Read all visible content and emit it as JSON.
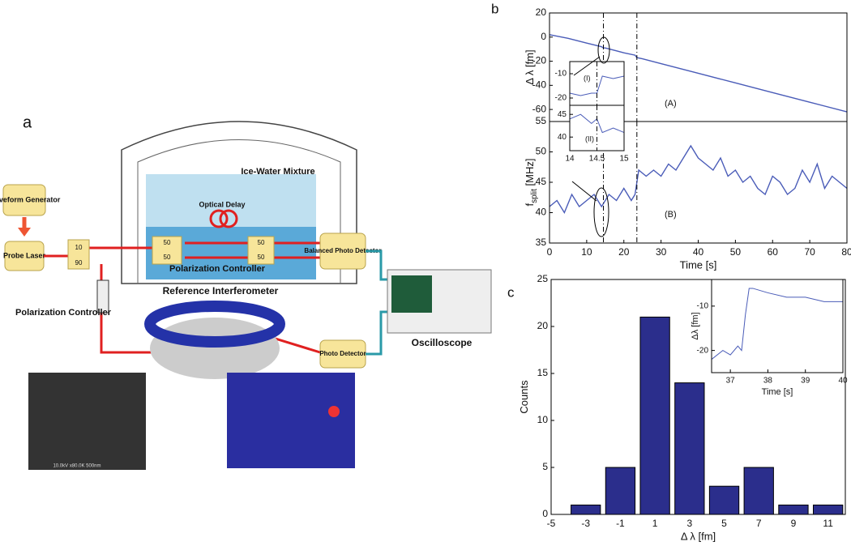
{
  "diagram": {
    "panel_label": "a",
    "waveform_generator": "Waveform Generator",
    "probe_laser": "Probe Laser",
    "coupler_top": "10",
    "coupler_bottom": "90",
    "polarization_controller": "Polarization Controller",
    "ice_water": "Ice-Water Mixture",
    "optical_delay": "Optical Delay",
    "splitter_labels": [
      "50",
      "50",
      "50",
      "50"
    ],
    "inner_polarization_controller": "Polarization Controller",
    "reference_interferometer": "Reference Interferometer",
    "balanced_detector": "Balanced Photo Detector",
    "photo_detector": "Photo Detector",
    "oscilloscope": "Oscilloscope",
    "sem_caption": "10.0kV x80.0K 500nm"
  },
  "panel_labels": {
    "b": "b",
    "c": "c"
  },
  "chart_data": [
    {
      "type": "line",
      "y_label": "Δ λ [fm]",
      "annotation": "(A)",
      "color": "#4a5cb8",
      "x": [
        0,
        5,
        10,
        14,
        14.5,
        15,
        20,
        23,
        23.5,
        25,
        30,
        40,
        50,
        60,
        70,
        80
      ],
      "values": [
        2,
        -1,
        -5,
        -8,
        -9,
        -9,
        -13,
        -15,
        -17,
        -18,
        -22,
        -30,
        -38,
        -46,
        -54,
        -62
      ],
      "xlim": [
        0,
        80
      ],
      "ylim": [
        -70,
        20
      ],
      "yticks": [
        20,
        0,
        -20,
        -40,
        -60
      ],
      "vlines": [
        14.5,
        23.5
      ]
    },
    {
      "type": "line",
      "y_label": "f",
      "y_label_sub": "split",
      "y_label_unit": " [MHz]",
      "x_label": "Time [s]",
      "annotation": "(B)",
      "color": "#4a5cb8",
      "x": [
        0,
        2,
        4,
        6,
        8,
        10,
        12,
        14,
        16,
        18,
        20,
        22,
        23,
        24,
        26,
        28,
        30,
        32,
        34,
        36,
        38,
        40,
        42,
        44,
        46,
        48,
        50,
        52,
        54,
        56,
        58,
        60,
        62,
        64,
        66,
        68,
        70,
        72,
        74,
        76,
        78,
        80
      ],
      "values": [
        41,
        42,
        40,
        43,
        41,
        42,
        43,
        41,
        43,
        42,
        44,
        42,
        43,
        47,
        46,
        47,
        46,
        48,
        47,
        49,
        51,
        49,
        48,
        47,
        49,
        46,
        47,
        45,
        46,
        44,
        43,
        46,
        45,
        43,
        44,
        47,
        45,
        48,
        44,
        46,
        45,
        44
      ],
      "xlim": [
        0,
        80
      ],
      "ylim": [
        35,
        55
      ],
      "xticks": [
        0,
        10,
        20,
        30,
        40,
        50,
        60,
        70,
        80
      ],
      "yticks": [
        35,
        40,
        45,
        50,
        55
      ],
      "vlines": [
        14.5,
        23.5
      ]
    },
    {
      "type": "line",
      "annotation": "(I)",
      "color": "#4a5cb8",
      "x": [
        14,
        14.2,
        14.4,
        14.5,
        14.6,
        14.8,
        15
      ],
      "values": [
        -18,
        -19,
        -18,
        -18,
        -11,
        -12,
        -11
      ],
      "xlim": [
        14,
        15
      ],
      "ylim": [
        -23,
        -5
      ],
      "yticks": [
        -10,
        -20
      ],
      "vlines": [
        14.5
      ]
    },
    {
      "type": "line",
      "annotation": "(II)",
      "color": "#4a5cb8",
      "x": [
        14,
        14.2,
        14.4,
        14.5,
        14.6,
        14.8,
        15
      ],
      "values": [
        44,
        45,
        43,
        44,
        41,
        42,
        41
      ],
      "xlim": [
        14,
        15
      ],
      "ylim": [
        37,
        47
      ],
      "xticks": [
        14,
        14.5,
        15
      ],
      "yticks": [
        45,
        40
      ],
      "vlines": [
        14.5
      ]
    },
    {
      "type": "bar",
      "x_label": "Δ λ [fm]",
      "y_label": "Counts",
      "color": "#2b2e8c",
      "x": [
        -3,
        -1,
        1,
        3,
        5,
        7,
        9,
        11
      ],
      "values": [
        1,
        5,
        21,
        14,
        3,
        5,
        1,
        1
      ],
      "xlim": [
        -5,
        12
      ],
      "ylim": [
        0,
        25
      ],
      "xticks": [
        -5,
        -3,
        -1,
        1,
        3,
        5,
        7,
        9,
        11
      ],
      "yticks": [
        0,
        5,
        10,
        15,
        20,
        25
      ]
    },
    {
      "type": "line",
      "x_label": "Time [s]",
      "y_label": "Δλ [fm]",
      "color": "#4a5cb8",
      "x": [
        36.5,
        36.8,
        37,
        37.2,
        37.3,
        37.4,
        37.5,
        37.6,
        38,
        38.5,
        39,
        39.5,
        40
      ],
      "values": [
        -22,
        -20,
        -21,
        -19,
        -20,
        -12,
        -6,
        -6,
        -7,
        -8,
        -8,
        -9,
        -9
      ],
      "xlim": [
        36.5,
        40
      ],
      "ylim": [
        -25,
        -4
      ],
      "xticks": [
        37,
        38,
        39,
        40
      ],
      "yticks": [
        -10,
        -20
      ]
    }
  ]
}
